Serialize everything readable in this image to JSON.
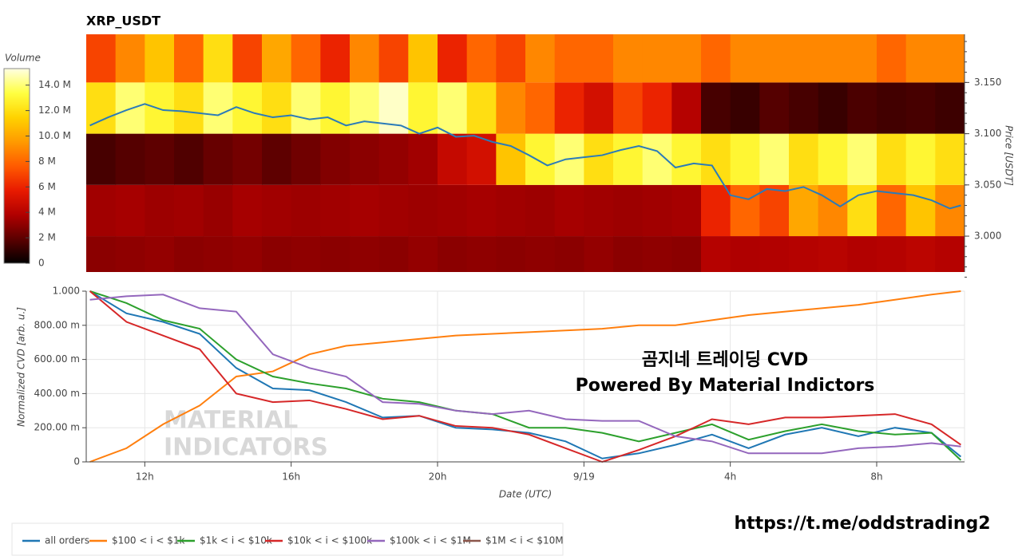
{
  "chart_data": [
    {
      "type": "heatmap",
      "title": "XRP_USDT",
      "xlim": [
        10.4,
        34.4
      ],
      "xbins": [
        10.4,
        11.2,
        12.0,
        12.8,
        13.6,
        14.4,
        15.2,
        16.0,
        16.8,
        17.6,
        18.4,
        19.2,
        20.0,
        20.8,
        21.6,
        22.4,
        23.2,
        24.0,
        24.8,
        25.6,
        26.4,
        27.2,
        28.0,
        28.8,
        29.6,
        30.4,
        31.2,
        32.0,
        32.8,
        33.6,
        34.4
      ],
      "ybins": [
        2.95,
        3.0,
        3.05,
        3.1,
        3.15,
        3.2
      ],
      "z": [
        [
          3,
          3.1,
          3.2,
          3,
          3.1,
          3.2,
          3,
          3.1,
          3,
          3.1,
          3,
          3.2,
          3,
          3.1,
          3,
          3.1,
          3,
          3.2,
          3,
          3.1,
          3,
          4,
          3.8,
          3.9,
          4,
          4.1,
          3.9,
          4,
          4.2,
          4
        ],
        [
          3.5,
          3.6,
          3.4,
          3.5,
          3.3,
          3.6,
          3.5,
          3.4,
          3.5,
          3.6,
          3.5,
          3.4,
          3.5,
          3.6,
          3.5,
          3.4,
          3.6,
          3.5,
          3.4,
          3.5,
          3.6,
          6,
          8,
          7,
          10,
          9,
          12,
          8,
          11,
          9
        ],
        [
          1.5,
          1.8,
          2,
          1.7,
          2.2,
          2.5,
          2,
          2.4,
          2.8,
          3,
          3.2,
          3.5,
          4.5,
          5,
          11,
          13,
          14,
          12,
          13,
          14,
          13,
          12,
          13,
          14,
          12,
          13,
          14,
          12,
          13,
          12
        ],
        [
          12,
          14,
          13,
          12,
          14,
          13,
          12,
          14,
          13,
          14,
          15,
          13,
          14,
          12,
          9,
          8,
          6,
          5,
          7,
          6,
          4,
          1.5,
          1.2,
          1.8,
          1.5,
          1.2,
          1.6,
          1.4,
          1.5,
          1.3
        ],
        [
          7,
          9,
          11,
          8,
          12,
          7,
          10,
          8,
          6,
          9,
          7,
          11,
          6,
          8,
          7,
          9,
          8,
          8,
          9,
          9,
          9,
          8,
          9,
          9,
          9,
          9,
          9,
          8,
          9,
          9
        ]
      ],
      "colorbar": {
        "label": "Volume",
        "lim": [
          0,
          15.3
        ],
        "ticks": [
          0,
          {
            "value": 2,
            "label": "2 M"
          },
          {
            "value": 4,
            "label": "4 M"
          },
          {
            "value": 6,
            "label": "6 M"
          },
          {
            "value": 8,
            "label": "8 M"
          },
          {
            "value": 10,
            "label": "10.0 M"
          },
          {
            "value": 12,
            "label": "12.0 M"
          },
          {
            "value": 14,
            "label": "14.0 M"
          }
        ],
        "colors": [
          "#000000",
          "#5a0000",
          "#b00000",
          "#e81a00",
          "#ff5a00",
          "#ff9a00",
          "#ffd200",
          "#ffff40",
          "#ffffe0"
        ]
      },
      "ylabel": "Price [USDT]",
      "ylim": [
        2.965,
        3.197
      ],
      "yticks": [
        {
          "value": 3.0,
          "label": "3.000"
        },
        {
          "value": 3.05,
          "label": "3.050"
        },
        {
          "value": 3.1,
          "label": "3.100"
        },
        {
          "value": 3.15,
          "label": "3.150"
        }
      ],
      "line": {
        "color": "#2b7bb9",
        "x": [
          10.5,
          11,
          11.5,
          12,
          12.5,
          13,
          13.5,
          14,
          14.5,
          15,
          15.5,
          16,
          16.5,
          17,
          17.5,
          18,
          18.5,
          19,
          19.5,
          20,
          20.5,
          21,
          21.5,
          22,
          22.5,
          23,
          23.5,
          24,
          24.5,
          25,
          25.5,
          26,
          26.5,
          27,
          27.5,
          28,
          28.5,
          29,
          29.5,
          30,
          30.5,
          31,
          31.5,
          32,
          32.5,
          33,
          33.5,
          34,
          34.3
        ],
        "values": [
          3.108,
          3.116,
          3.123,
          3.129,
          3.123,
          3.122,
          3.12,
          3.118,
          3.126,
          3.12,
          3.116,
          3.118,
          3.114,
          3.116,
          3.108,
          3.112,
          3.11,
          3.108,
          3.1,
          3.106,
          3.097,
          3.098,
          3.092,
          3.088,
          3.079,
          3.069,
          3.075,
          3.077,
          3.079,
          3.084,
          3.088,
          3.083,
          3.067,
          3.071,
          3.069,
          3.04,
          3.036,
          3.046,
          3.044,
          3.048,
          3.04,
          3.029,
          3.04,
          3.044,
          3.042,
          3.04,
          3.035,
          3.027,
          3.03
        ]
      }
    },
    {
      "type": "line",
      "xlabel": "Date (UTC)",
      "ylabel": "Normalized CVD [arb. u.]",
      "xlim": [
        10.4,
        34.4
      ],
      "xticks": [
        {
          "value": 12,
          "label": "12h"
        },
        {
          "value": 16,
          "label": "16h"
        },
        {
          "value": 20,
          "label": "20h"
        },
        {
          "value": 24,
          "label": "9/19"
        },
        {
          "value": 28,
          "label": "4h"
        },
        {
          "value": 32,
          "label": "8h"
        }
      ],
      "ylim": [
        0,
        1
      ],
      "yticks": [
        0,
        {
          "value": 0.2,
          "label": "200.00 m"
        },
        {
          "value": 0.4,
          "label": "400.00 m"
        },
        {
          "value": 0.6,
          "label": "600.00 m"
        },
        {
          "value": 0.8,
          "label": "800.00 m"
        },
        {
          "value": 1,
          "label": "1.000"
        }
      ],
      "grid": true,
      "x": [
        10.5,
        11.5,
        12.5,
        13.5,
        14.5,
        15.5,
        16.5,
        17.5,
        18.5,
        19.5,
        20.5,
        21.5,
        22.5,
        23.5,
        24.5,
        25.5,
        26.5,
        27.5,
        28.5,
        29.5,
        30.5,
        31.5,
        32.5,
        33.5,
        34.3
      ],
      "series": [
        {
          "name": "all orders",
          "color": "#1f77b4",
          "values": [
            1.0,
            0.87,
            0.82,
            0.75,
            0.55,
            0.43,
            0.42,
            0.35,
            0.26,
            0.27,
            0.2,
            0.19,
            0.17,
            0.12,
            0.02,
            0.05,
            0.1,
            0.16,
            0.08,
            0.16,
            0.2,
            0.15,
            0.2,
            0.17,
            0.03
          ]
        },
        {
          "name": "$100 < i < $1k",
          "color": "#ff7f0e",
          "values": [
            0.0,
            0.08,
            0.22,
            0.33,
            0.5,
            0.53,
            0.63,
            0.68,
            0.7,
            0.72,
            0.74,
            0.75,
            0.76,
            0.77,
            0.78,
            0.8,
            0.8,
            0.83,
            0.86,
            0.88,
            0.9,
            0.92,
            0.95,
            0.98,
            1.0
          ]
        },
        {
          "name": "$1k < i < $10k",
          "color": "#2ca02c",
          "values": [
            1.0,
            0.93,
            0.83,
            0.78,
            0.6,
            0.5,
            0.46,
            0.43,
            0.37,
            0.35,
            0.3,
            0.28,
            0.2,
            0.2,
            0.17,
            0.12,
            0.17,
            0.22,
            0.13,
            0.18,
            0.22,
            0.18,
            0.16,
            0.17,
            0.01
          ]
        },
        {
          "name": "$10k < i < $100k",
          "color": "#d62728",
          "values": [
            1.0,
            0.82,
            0.74,
            0.66,
            0.4,
            0.35,
            0.36,
            0.31,
            0.25,
            0.27,
            0.21,
            0.2,
            0.16,
            0.08,
            0.0,
            0.07,
            0.15,
            0.25,
            0.22,
            0.26,
            0.26,
            0.27,
            0.28,
            0.22,
            0.1
          ]
        },
        {
          "name": "$100k < i < $1M",
          "color": "#9467bd",
          "values": [
            0.95,
            0.97,
            0.98,
            0.9,
            0.88,
            0.63,
            0.55,
            0.5,
            0.35,
            0.34,
            0.3,
            0.28,
            0.3,
            0.25,
            0.24,
            0.24,
            0.15,
            0.12,
            0.05,
            0.05,
            0.05,
            0.08,
            0.09,
            0.11,
            0.09
          ]
        },
        {
          "name": "$1M < i < $10M",
          "color": "#8c564b",
          "values": [
            null,
            null,
            null,
            null,
            null,
            null,
            null,
            null,
            null,
            null,
            null,
            null,
            null,
            null,
            null,
            null,
            null,
            null,
            null,
            null,
            null,
            null,
            null,
            null,
            null
          ]
        }
      ],
      "watermark": [
        "MATERIAL",
        "INDICATORS"
      ],
      "annotations": [
        "곰지네 트레이딩 CVD",
        "Powered By Material Indictors"
      ]
    }
  ],
  "link": "https://t.me/oddstrading2"
}
